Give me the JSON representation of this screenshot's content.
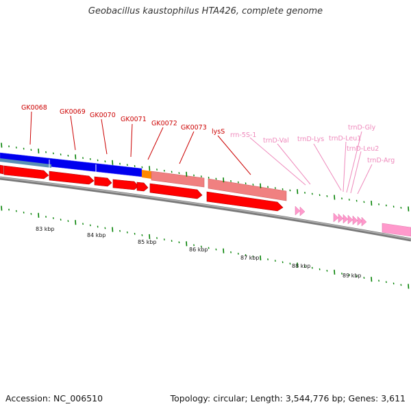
{
  "title": "Geobacillus kaustophilus HTA426, complete genome",
  "footer": {
    "accession": "Accession: NC_006510",
    "stats": "Topology: circular; Length: 3,544,776 bp; Genes: 3,611"
  },
  "colors": {
    "cds": "#ee0000",
    "cds_fill": "#ff0000",
    "rrna": "#ee7777",
    "rrna_fill": "#f08080",
    "trna": "#ff99cc",
    "trna_label": "#ee88bb",
    "gene_label": "#cc0000",
    "cog_blue": "#0000ee",
    "cog_steel": "#5a8fb5",
    "cog_orange": "#ff8800",
    "tick": "#008000",
    "backbone": "#888888"
  },
  "gene_labels": [
    {
      "text": "GK0068",
      "kind": "cds"
    },
    {
      "text": "GK0069",
      "kind": "cds"
    },
    {
      "text": "GK0070",
      "kind": "cds"
    },
    {
      "text": "GK0071",
      "kind": "cds"
    },
    {
      "text": "GK0072",
      "kind": "cds"
    },
    {
      "text": "GK0073",
      "kind": "cds"
    },
    {
      "text": "lysS",
      "kind": "cds"
    },
    {
      "text": "rrn-5S-1",
      "kind": "rrna"
    },
    {
      "text": "trnD-Val",
      "kind": "trna"
    },
    {
      "text": "trnD-Lys",
      "kind": "trna"
    },
    {
      "text": "trnD-Leu1",
      "kind": "trna"
    },
    {
      "text": "trnD-Gly",
      "kind": "trna"
    },
    {
      "text": "trnD-Leu2",
      "kind": "trna"
    },
    {
      "text": "trnD-Arg",
      "kind": "trna"
    }
  ],
  "kbp_labels": [
    "83 kbp",
    "84 kbp",
    "85 kbp",
    "86 kbp",
    "87 kbp",
    "88 kbp",
    "89 kbp"
  ]
}
